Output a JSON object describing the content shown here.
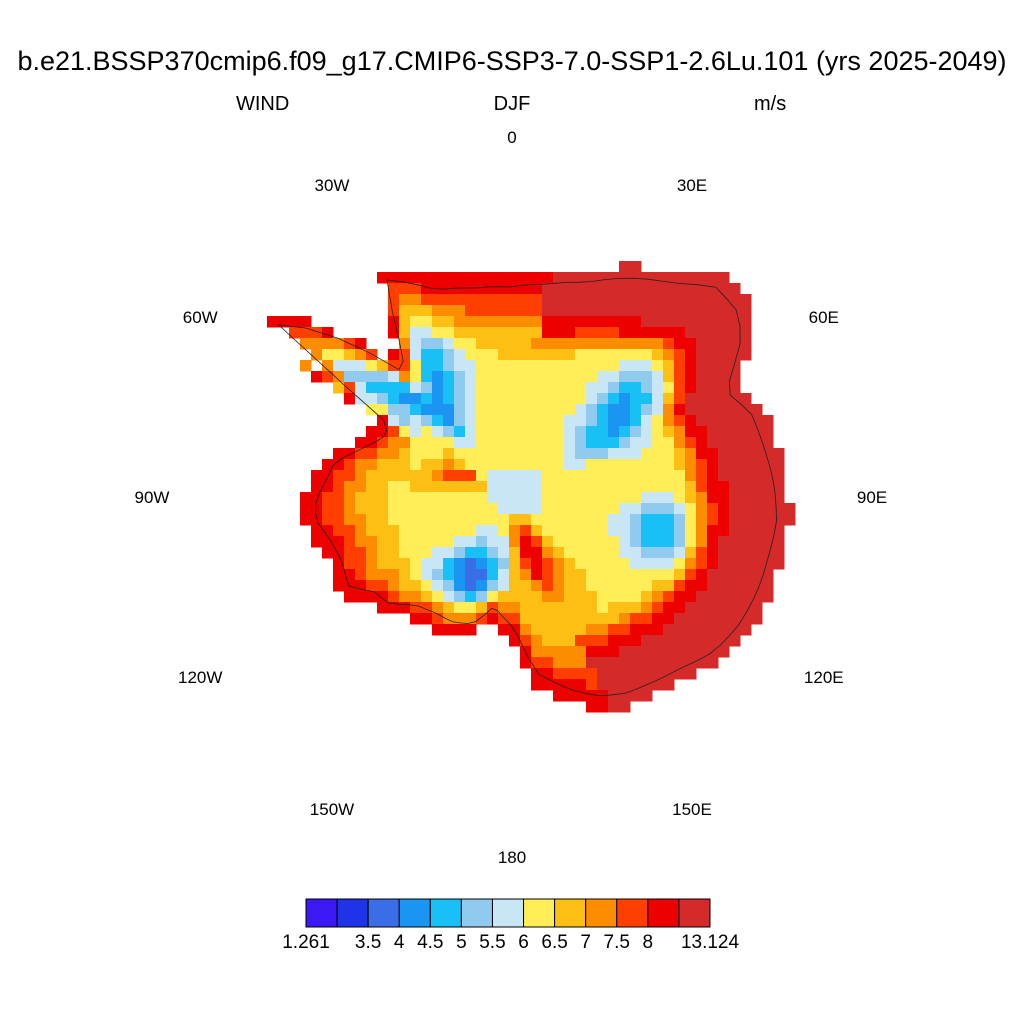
{
  "header": {
    "title": "b.e21.BSSP370cmip6.f09_g17.CMIP6-SSP3-7.0-SSP1-2.6Lu.101 (yrs 2025-2049)",
    "left_string": "WIND",
    "center_string": "DJF",
    "right_string": "m/s"
  },
  "map": {
    "projection": "south-polar-stereographic",
    "variable": "WIND",
    "longitude_labels": [
      {
        "text": "0",
        "lon": 0
      },
      {
        "text": "30E",
        "lon": 30
      },
      {
        "text": "60E",
        "lon": 60
      },
      {
        "text": "90E",
        "lon": 90
      },
      {
        "text": "120E",
        "lon": 120
      },
      {
        "text": "150E",
        "lon": 150
      },
      {
        "text": "180",
        "lon": 180
      },
      {
        "text": "150W",
        "lon": -150
      },
      {
        "text": "120W",
        "lon": -120
      },
      {
        "text": "90W",
        "lon": -90
      },
      {
        "text": "60W",
        "lon": -60
      },
      {
        "text": "30W",
        "lon": -30
      }
    ],
    "field_description": "Near-surface wind speed over Antarctica; highest values (>8 m/s) along the East Antarctic coast and margins, lowest (<4.5 m/s) over the West Antarctic interior and Ross/Ronne shelf regions"
  },
  "colorbar": {
    "colors": [
      "#3c18f5",
      "#1e34e6",
      "#3a6ee6",
      "#1a96f2",
      "#18c0f5",
      "#90caee",
      "#c8e6f6",
      "#ffee58",
      "#fdbf14",
      "#fe8c00",
      "#fe3f00",
      "#ec0000",
      "#d42a2a"
    ],
    "labels": [
      "1.261",
      "3.5",
      "4",
      "4.5",
      "5",
      "5.5",
      "6",
      "6.5",
      "7",
      "7.5",
      "8",
      "13.124"
    ],
    "label_boundary_index": [
      0,
      2,
      3,
      4,
      5,
      6,
      7,
      8,
      9,
      10,
      11,
      13
    ]
  }
}
